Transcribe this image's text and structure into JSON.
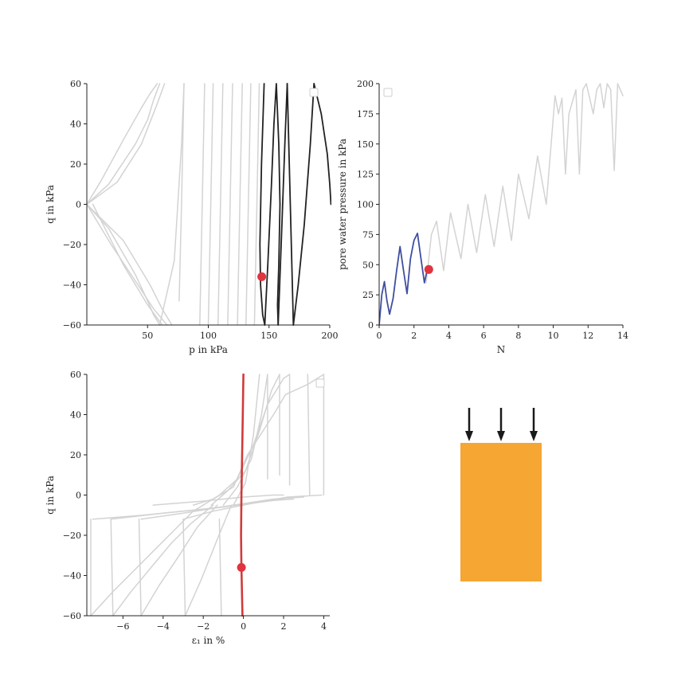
{
  "chart_data": [
    {
      "type": "line",
      "xlabel": "p in kPa",
      "ylabel": "q in kPa",
      "xlim": [
        0,
        200
      ],
      "ylim": [
        -60,
        60
      ],
      "xticks": [
        50,
        100,
        150,
        200
      ],
      "yticks": [
        -60,
        -40,
        -20,
        0,
        20,
        40,
        60
      ],
      "colors": {
        "history": "#d3d3d3",
        "recent": "#222222",
        "marker": "#e0343f"
      },
      "marker": {
        "x": 144,
        "y": -36
      },
      "series": [
        {
          "role": "history",
          "x": [
            0,
            18,
            40,
            50,
            55,
            60
          ],
          "y": [
            0,
            10,
            30,
            42,
            52,
            60
          ]
        },
        {
          "role": "history",
          "x": [
            0,
            18,
            40,
            50,
            55,
            60
          ],
          "y": [
            0,
            -12,
            -35,
            -48,
            -55,
            -60
          ]
        },
        {
          "role": "history",
          "x": [
            0,
            12,
            30,
            45,
            52,
            58
          ],
          "y": [
            0,
            12,
            32,
            48,
            55,
            60
          ]
        },
        {
          "role": "history",
          "x": [
            0,
            25,
            45,
            58,
            64
          ],
          "y": [
            0,
            11,
            30,
            50,
            60
          ]
        },
        {
          "role": "history",
          "x": [
            0,
            20,
            42,
            55,
            66
          ],
          "y": [
            0,
            -20,
            -40,
            -52,
            -60
          ]
        },
        {
          "role": "history",
          "x": [
            0,
            30,
            52,
            62,
            70
          ],
          "y": [
            0,
            -18,
            -40,
            -52,
            -60
          ]
        },
        {
          "role": "history",
          "x": [
            5,
            30,
            50,
            62
          ],
          "y": [
            0,
            -30,
            -50,
            -60
          ]
        },
        {
          "role": "history",
          "x": [
            60,
            72,
            78,
            80
          ],
          "y": [
            -60,
            -28,
            30,
            60
          ]
        },
        {
          "role": "history",
          "x": [
            76,
            78,
            80
          ],
          "y": [
            -48,
            0,
            60
          ]
        },
        {
          "role": "history",
          "x": [
            93,
            95,
            97
          ],
          "y": [
            -60,
            0,
            60
          ]
        },
        {
          "role": "history",
          "x": [
            100,
            102,
            104
          ],
          "y": [
            -60,
            0,
            60
          ]
        },
        {
          "role": "history",
          "x": [
            108,
            110,
            112
          ],
          "y": [
            -60,
            0,
            60
          ]
        },
        {
          "role": "history",
          "x": [
            116,
            118,
            120
          ],
          "y": [
            -60,
            0,
            60
          ]
        },
        {
          "role": "history",
          "x": [
            124,
            126,
            128
          ],
          "y": [
            -60,
            0,
            60
          ]
        },
        {
          "role": "history",
          "x": [
            131,
            133,
            135
          ],
          "y": [
            -60,
            0,
            60
          ]
        },
        {
          "role": "history",
          "x": [
            138,
            140,
            142
          ],
          "y": [
            -60,
            0,
            60
          ]
        },
        {
          "role": "recent",
          "x": [
            146,
            143.8,
            142.5,
            143,
            144.8,
            146.5
          ],
          "y": [
            60,
            20,
            -20,
            -40,
            -55,
            -60
          ]
        },
        {
          "role": "recent",
          "x": [
            146.5,
            149,
            152,
            154,
            156,
            158,
            159
          ],
          "y": [
            -60,
            -30,
            10,
            40,
            60,
            30,
            0
          ]
        },
        {
          "role": "recent",
          "x": [
            159,
            158,
            157,
            157.5
          ],
          "y": [
            0,
            -30,
            -50,
            -60
          ]
        },
        {
          "role": "recent",
          "x": [
            157.5,
            160,
            163,
            165
          ],
          "y": [
            -60,
            -20,
            30,
            60
          ]
        },
        {
          "role": "recent",
          "x": [
            165,
            170
          ],
          "y": [
            60,
            -60
          ]
        },
        {
          "role": "recent",
          "x": [
            170,
            174,
            179,
            184,
            187
          ],
          "y": [
            -60,
            -40,
            -10,
            30,
            60
          ]
        },
        {
          "role": "recent",
          "x": [
            187,
            193,
            198,
            200,
            201
          ],
          "y": [
            60,
            45,
            25,
            10,
            0
          ]
        }
      ]
    },
    {
      "type": "line",
      "xlabel": "N",
      "ylabel": "pore water pressure in kPa",
      "xlim": [
        0,
        14
      ],
      "ylim": [
        0,
        200
      ],
      "xticks": [
        0,
        2,
        4,
        6,
        8,
        10,
        12,
        14
      ],
      "yticks": [
        0,
        25,
        50,
        75,
        100,
        125,
        150,
        175,
        200
      ],
      "colors": {
        "history": "#d3d3d3",
        "recent": "#3f4fa0",
        "marker": "#e0343f"
      },
      "marker": {
        "x": 2.85,
        "y": 46
      },
      "series": [
        {
          "role": "history",
          "x": [
            2.7,
            3.0,
            3.3,
            3.7,
            4.1,
            4.7,
            5.1,
            5.6,
            6.1,
            6.6,
            7.1,
            7.6,
            8.0,
            8.6,
            9.1,
            9.6,
            10.1,
            10.3,
            10.5,
            10.7,
            10.9,
            11.3,
            11.5,
            11.7,
            11.9,
            12.3,
            12.5,
            12.7,
            12.9,
            13.1,
            13.3,
            13.5,
            13.7,
            14.0
          ],
          "y": [
            35,
            75,
            86,
            45,
            93,
            55,
            100,
            60,
            108,
            65,
            115,
            70,
            125,
            88,
            140,
            100,
            190,
            175,
            188,
            125,
            175,
            195,
            125,
            195,
            200,
            175,
            195,
            200,
            180,
            200,
            195,
            128,
            200,
            190
          ]
        },
        {
          "role": "recent",
          "x": [
            0,
            0.15,
            0.3,
            0.45,
            0.6,
            0.8,
            1.0,
            1.2,
            1.4,
            1.6,
            1.8,
            2.0,
            2.2,
            2.4,
            2.6,
            2.75,
            2.85
          ],
          "y": [
            0,
            25,
            36,
            20,
            9,
            22,
            45,
            65,
            45,
            26,
            55,
            70,
            76,
            55,
            35,
            45,
            46
          ]
        }
      ]
    },
    {
      "type": "line",
      "xlabel": "ε₁ in %",
      "ylabel": "q in kPa",
      "xlim": [
        -7.8,
        4.3
      ],
      "ylim": [
        -60,
        60
      ],
      "xticks": [
        -6,
        -4,
        -2,
        0,
        2,
        4
      ],
      "yticks": [
        -60,
        -40,
        -20,
        0,
        20,
        40,
        60
      ],
      "colors": {
        "history": "#d3d3d3",
        "recent": "#d23a3a",
        "marker": "#e0343f"
      },
      "marker": {
        "x": -0.1,
        "y": -36
      },
      "series": [
        {
          "role": "history",
          "x": [
            -7.6,
            -7.6
          ],
          "y": [
            -12,
            -60
          ]
        },
        {
          "role": "history",
          "x": [
            -6.6,
            -6.5
          ],
          "y": [
            -12,
            -60
          ]
        },
        {
          "role": "history",
          "x": [
            -5.2,
            -5.1
          ],
          "y": [
            -12,
            -60
          ]
        },
        {
          "role": "history",
          "x": [
            -3.0,
            -2.9
          ],
          "y": [
            -12,
            -60
          ]
        },
        {
          "role": "history",
          "x": [
            -1.2,
            -1.1
          ],
          "y": [
            -12,
            -60
          ]
        },
        {
          "role": "history",
          "x": [
            -7.6,
            -6.5,
            -5.5,
            -4.5,
            -3.5,
            -2.5,
            -2.0
          ],
          "y": [
            -60,
            -48,
            -38,
            -28,
            -18,
            -8,
            -5
          ]
        },
        {
          "role": "history",
          "x": [
            -6.5,
            -5.6,
            -4.6,
            -3.6,
            -2.6,
            -1.5
          ],
          "y": [
            -60,
            -48,
            -36,
            -24,
            -14,
            -5
          ]
        },
        {
          "role": "history",
          "x": [
            -5.1,
            -4.2,
            -3.2,
            -2.3,
            -1.3
          ],
          "y": [
            -60,
            -45,
            -30,
            -16,
            -5
          ]
        },
        {
          "role": "history",
          "x": [
            -2.9,
            -2.1,
            -1.3,
            -0.6
          ],
          "y": [
            -60,
            -42,
            -22,
            -5
          ]
        },
        {
          "role": "history",
          "x": [
            -7.5,
            -5.0,
            -2.0,
            0.5,
            2.0
          ],
          "y": [
            -12,
            -10,
            -7,
            -4,
            -2
          ]
        },
        {
          "role": "history",
          "x": [
            -6.6,
            -4.0,
            -1.0,
            1.0,
            2.5
          ],
          "y": [
            -12,
            -9,
            -6,
            -3,
            -2
          ]
        },
        {
          "role": "history",
          "x": [
            -5.1,
            -3.0,
            -0.5,
            1.5,
            3.0
          ],
          "y": [
            -12,
            -9,
            -5,
            -2,
            -1
          ]
        },
        {
          "role": "history",
          "x": [
            -3.0,
            -1.5,
            0.5,
            2.2,
            3.9
          ],
          "y": [
            -12,
            -8,
            -4,
            -1,
            0
          ]
        },
        {
          "role": "history",
          "x": [
            -4.5,
            -2.0,
            0.0,
            1.5,
            2.0
          ],
          "y": [
            -5,
            -3,
            -1,
            0,
            0
          ]
        },
        {
          "role": "history",
          "x": [
            -2.5,
            -1.5,
            -0.5,
            0.2,
            1.5,
            2.1,
            3.2,
            4.0
          ],
          "y": [
            -5,
            -2,
            4,
            20,
            40,
            50,
            55,
            60
          ]
        },
        {
          "role": "history",
          "x": [
            -2.0,
            -1.2,
            -0.3,
            0.5,
            1.2,
            2.0,
            2.3
          ],
          "y": [
            -5,
            0,
            8,
            25,
            45,
            58,
            60
          ]
        },
        {
          "role": "history",
          "x": [
            -1.6,
            -0.8,
            0.1,
            0.8,
            1.4,
            1.8
          ],
          "y": [
            -5,
            2,
            12,
            32,
            52,
            60
          ]
        },
        {
          "role": "history",
          "x": [
            -1.0,
            -0.3,
            0.4,
            0.9,
            1.2
          ],
          "y": [
            -5,
            4,
            18,
            40,
            60
          ]
        },
        {
          "role": "history",
          "x": [
            -0.5,
            0.1,
            0.5,
            0.8
          ],
          "y": [
            -5,
            6,
            30,
            60
          ]
        },
        {
          "role": "history",
          "x": [
            1.2,
            1.2
          ],
          "y": [
            60,
            8
          ]
        },
        {
          "role": "history",
          "x": [
            1.8,
            1.8
          ],
          "y": [
            60,
            10
          ]
        },
        {
          "role": "history",
          "x": [
            2.3,
            2.3
          ],
          "y": [
            60,
            5
          ]
        },
        {
          "role": "history",
          "x": [
            3.2,
            3.3
          ],
          "y": [
            60,
            0
          ]
        },
        {
          "role": "history",
          "x": [
            4.0,
            4.0
          ],
          "y": [
            60,
            0
          ]
        },
        {
          "role": "recent",
          "x": [
            0.0,
            -0.05,
            -0.1,
            -0.12,
            -0.1,
            -0.05
          ],
          "y": [
            60,
            30,
            0,
            -20,
            -36,
            -60
          ]
        }
      ]
    }
  ],
  "scene": {
    "box_color": "#f5a633",
    "arrow_color": "#1a1a1a"
  }
}
